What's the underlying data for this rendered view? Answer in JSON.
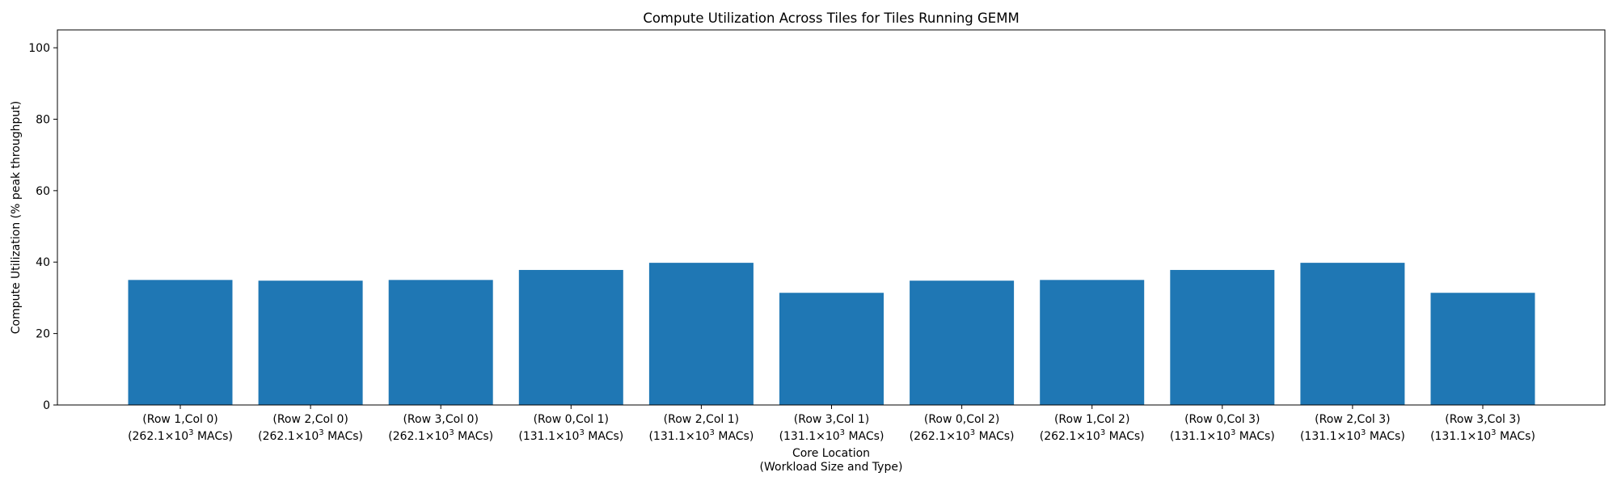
{
  "chart_data": {
    "type": "bar",
    "title": "Compute Utilization Across Tiles for Tiles Running GEMM",
    "ylabel": "Compute Utilization (% peak throughput)",
    "xlabel_lines": [
      "Core Location",
      "(Workload Size and Type)"
    ],
    "ylim": [
      0,
      105
    ],
    "yticks": [
      0,
      20,
      40,
      60,
      80,
      100
    ],
    "grid": false,
    "bar_color": "#1f77b4",
    "categories": [
      {
        "line1": "(Row 1,Col 0)",
        "base": "(262.1×10",
        "exp": "3",
        "suffix": " MACs)"
      },
      {
        "line1": "(Row 2,Col 0)",
        "base": "(262.1×10",
        "exp": "3",
        "suffix": " MACs)"
      },
      {
        "line1": "(Row 3,Col 0)",
        "base": "(262.1×10",
        "exp": "3",
        "suffix": " MACs)"
      },
      {
        "line1": "(Row 0,Col 1)",
        "base": "(131.1×10",
        "exp": "3",
        "suffix": " MACs)"
      },
      {
        "line1": "(Row 2,Col 1)",
        "base": "(131.1×10",
        "exp": "3",
        "suffix": " MACs)"
      },
      {
        "line1": "(Row 3,Col 1)",
        "base": "(131.1×10",
        "exp": "3",
        "suffix": " MACs)"
      },
      {
        "line1": "(Row 0,Col 2)",
        "base": "(262.1×10",
        "exp": "3",
        "suffix": " MACs)"
      },
      {
        "line1": "(Row 1,Col 2)",
        "base": "(262.1×10",
        "exp": "3",
        "suffix": " MACs)"
      },
      {
        "line1": "(Row 0,Col 3)",
        "base": "(131.1×10",
        "exp": "3",
        "suffix": " MACs)"
      },
      {
        "line1": "(Row 2,Col 3)",
        "base": "(131.1×10",
        "exp": "3",
        "suffix": " MACs)"
      },
      {
        "line1": "(Row 3,Col 3)",
        "base": "(131.1×10",
        "exp": "3",
        "suffix": " MACs)"
      }
    ],
    "values": [
      35.0,
      34.8,
      35.0,
      37.8,
      39.8,
      31.4,
      34.8,
      35.0,
      37.8,
      39.8,
      31.4
    ]
  }
}
